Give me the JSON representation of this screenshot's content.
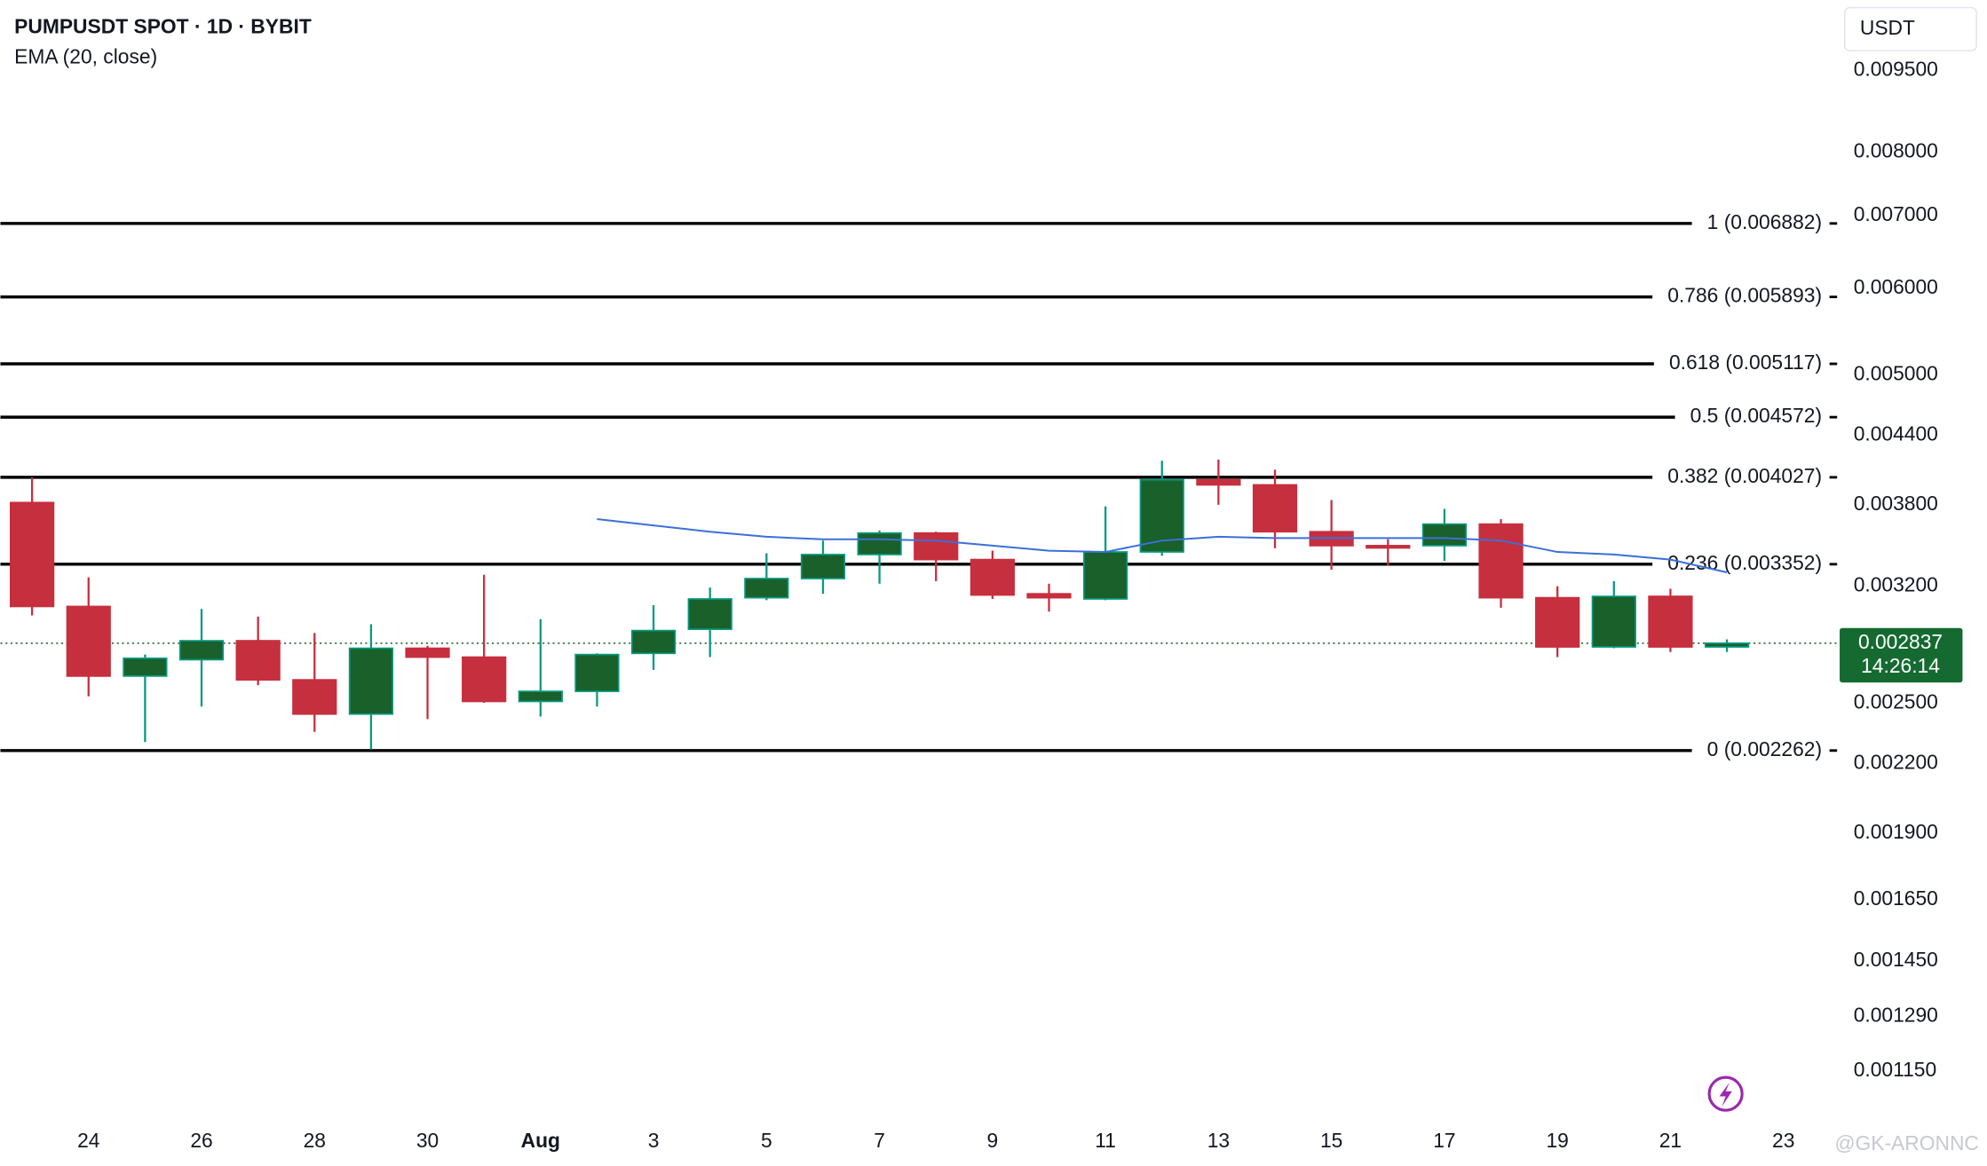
{
  "chart_data": {
    "type": "candlestick",
    "title": "PUMPUSDT SPOT · 1D · BYBIT",
    "y_unit": "USDT",
    "log_scale": true,
    "grid": false,
    "categories": [
      null,
      "24",
      null,
      "26",
      null,
      "28",
      null,
      "30",
      null,
      "Aug",
      null,
      "3",
      null,
      "5",
      null,
      "7",
      null,
      "9",
      null,
      "11",
      null,
      "13",
      null,
      "15",
      null,
      "17",
      null,
      "19",
      null,
      "21",
      null,
      "23"
    ],
    "open": [
      0.003818,
      0.003066,
      0.002647,
      0.00274,
      0.002852,
      0.002626,
      0.002443,
      0.002807,
      0.002755,
      0.002509,
      0.002563,
      0.002777,
      0.002922,
      0.003123,
      0.003252,
      0.003421,
      0.00358,
      0.003385,
      0.003149,
      0.003115,
      0.00344,
      0.004006,
      0.003963,
      0.00359,
      0.003486,
      0.003486,
      0.003648,
      0.003123,
      0.002815,
      0.003132,
      0.002815,
      null
    ],
    "high": [
      0.004027,
      0.00326,
      0.00277,
      0.00305,
      0.003001,
      0.002899,
      0.002953,
      0.002822,
      0.003278,
      0.002985,
      0.002777,
      0.003074,
      0.003191,
      0.00343,
      0.003523,
      0.003599,
      0.00359,
      0.003449,
      0.003217,
      0.003787,
      0.00417,
      0.004181,
      0.004092,
      0.003838,
      0.003533,
      0.003767,
      0.003687,
      0.0032,
      0.003234,
      0.003183,
      0.00286,
      null
    ],
    "low": [
      0.003009,
      0.002536,
      0.002303,
      0.002482,
      0.002597,
      0.002353,
      0.002267,
      0.002417,
      0.002502,
      0.00243,
      0.002482,
      0.002682,
      0.002755,
      0.003107,
      0.003149,
      0.003217,
      0.003234,
      0.003115,
      0.003033,
      0.003107,
      0.003412,
      0.0038,
      0.003467,
      0.003313,
      0.00334,
      0.003376,
      0.003058,
      0.002755,
      0.002807,
      0.002785,
      0.002785,
      null
    ],
    "close": [
      0.003066,
      0.002647,
      0.002748,
      0.002852,
      0.002626,
      0.002443,
      0.002807,
      0.002755,
      0.002509,
      0.002563,
      0.00277,
      0.002914,
      0.003115,
      0.003252,
      0.003421,
      0.00358,
      0.003385,
      0.003141,
      0.003123,
      0.00344,
      0.004006,
      0.003963,
      0.00359,
      0.003486,
      0.003478,
      0.003648,
      0.003123,
      0.002815,
      0.003132,
      0.002815,
      0.002837,
      null
    ],
    "up_color": "#19602a",
    "up_border": "#089981",
    "down_color": "#c62f3e",
    "ema": {
      "name": "EMA (20, close)",
      "color": "#3d6fd8",
      "values": [
        null,
        null,
        null,
        null,
        null,
        null,
        null,
        null,
        null,
        null,
        0.003687,
        0.003638,
        0.00359,
        0.003552,
        0.003533,
        0.003533,
        0.003523,
        0.003486,
        0.003449,
        0.00344,
        0.003523,
        0.003552,
        0.003542,
        0.003542,
        0.003542,
        0.003542,
        0.003523,
        0.00344,
        0.003421,
        0.003385,
        0.003295,
        null
      ]
    },
    "fib_levels": [
      {
        "value": 0.006882,
        "label": "1 (0.006882)"
      },
      {
        "value": 0.005893,
        "label": "0.786 (0.005893)"
      },
      {
        "value": 0.005117,
        "label": "0.618 (0.005117)"
      },
      {
        "value": 0.004572,
        "label": "0.5 (0.004572)"
      },
      {
        "value": 0.004027,
        "label": "0.382 (0.004027)"
      },
      {
        "value": 0.003352,
        "label": "0.236 (0.003352)"
      },
      {
        "value": 0.002262,
        "label": "0 (0.002262)"
      }
    ],
    "last_price": {
      "value": 0.002837,
      "label": "0.002837"
    },
    "countdown": "14:26:14",
    "ylim": [
      0.00105,
      0.011
    ],
    "yticks": [
      {
        "value": 0.0095,
        "label": "0.009500"
      },
      {
        "value": 0.008,
        "label": "0.008000"
      },
      {
        "value": 0.007,
        "label": "0.007000"
      },
      {
        "value": 0.006,
        "label": "0.006000"
      },
      {
        "value": 0.005,
        "label": "0.005000"
      },
      {
        "value": 0.0044,
        "label": "0.004400"
      },
      {
        "value": 0.0038,
        "label": "0.003800"
      },
      {
        "value": 0.0032,
        "label": "0.003200"
      },
      {
        "value": 0.0025,
        "label": "0.002500"
      },
      {
        "value": 0.0022,
        "label": "0.002200"
      },
      {
        "value": 0.0019,
        "label": "0.001900"
      },
      {
        "value": 0.00165,
        "label": "0.001650"
      },
      {
        "value": 0.00145,
        "label": "0.001450"
      },
      {
        "value": 0.00129,
        "label": "0.001290"
      },
      {
        "value": 0.00115,
        "label": "0.001150"
      }
    ],
    "watermark": "@GK-ARONNC"
  }
}
